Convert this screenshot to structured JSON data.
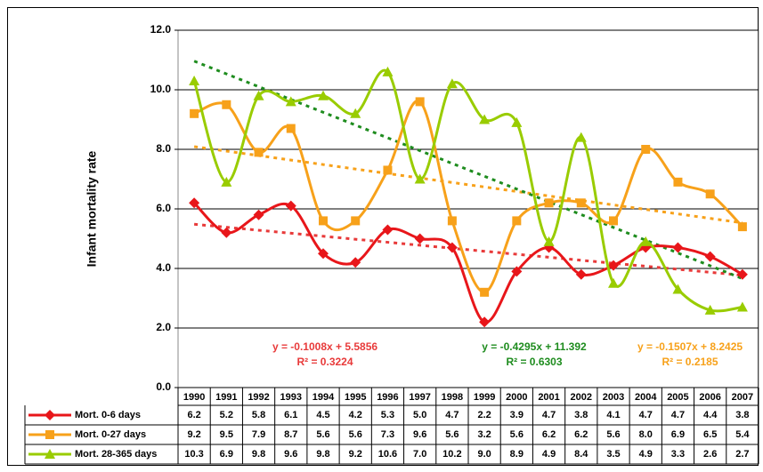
{
  "chart_data": {
    "type": "line",
    "y_label": "Infant mortality rate",
    "categories": [
      "1990",
      "1991",
      "1992",
      "1993",
      "1994",
      "1995",
      "1996",
      "1997",
      "1998",
      "1999",
      "2000",
      "2001",
      "2002",
      "2003",
      "2004",
      "2005",
      "2006",
      "2007"
    ],
    "ylim": [
      0,
      12
    ],
    "yticks": [
      {
        "value": 0,
        "label": "0.0"
      },
      {
        "value": 2,
        "label": "2.0"
      },
      {
        "value": 4,
        "label": "4.0"
      },
      {
        "value": 6,
        "label": "6.0"
      },
      {
        "value": 8,
        "label": "8.0"
      },
      {
        "value": 10,
        "label": "10.0"
      },
      {
        "value": 12,
        "label": "12.0"
      }
    ],
    "grid": true,
    "series": [
      {
        "name": "Mort. 0-6 days",
        "color": "#e8161a",
        "marker": "diamond",
        "trend_color": "#e83a3a",
        "values": [
          6.2,
          5.2,
          5.8,
          6.1,
          4.5,
          4.2,
          5.3,
          5.0,
          4.7,
          2.2,
          3.9,
          4.7,
          3.8,
          4.1,
          4.7,
          4.7,
          4.4,
          3.8
        ],
        "value_labels": [
          "6.2",
          "5.2",
          "5.8",
          "6.1",
          "4.5",
          "4.2",
          "5.3",
          "5.0",
          "4.7",
          "2.2",
          "3.9",
          "4.7",
          "3.8",
          "4.1",
          "4.7",
          "4.7",
          "4.4",
          "3.8"
        ],
        "trend_equation": "y = -0.1008x + 5.5856",
        "trend_r2": "R² = 0.3224"
      },
      {
        "name": "Mort. 0-27 days",
        "color": "#f7a11a",
        "marker": "square",
        "trend_color": "#f7a11a",
        "values": [
          9.2,
          9.5,
          7.9,
          8.7,
          5.6,
          5.6,
          7.3,
          9.6,
          5.6,
          3.2,
          5.6,
          6.2,
          6.2,
          5.6,
          8.0,
          6.9,
          6.5,
          5.4
        ],
        "value_labels": [
          "9.2",
          "9.5",
          "7.9",
          "8.7",
          "5.6",
          "5.6",
          "7.3",
          "9.6",
          "5.6",
          "3.2",
          "5.6",
          "6.2",
          "6.2",
          "5.6",
          "8.0",
          "6.9",
          "6.5",
          "5.4"
        ],
        "trend_equation": "y = -0.1507x + 8.2425",
        "trend_r2": "R² = 0.2185"
      },
      {
        "name": "Mort. 28-365 days",
        "color": "#99cc00",
        "marker": "triangle",
        "trend_color": "#1e8c1e",
        "values": [
          10.3,
          6.9,
          9.8,
          9.6,
          9.8,
          9.2,
          10.6,
          7.0,
          10.2,
          9.0,
          8.9,
          4.9,
          8.4,
          3.5,
          4.9,
          3.3,
          2.6,
          2.7
        ],
        "value_labels": [
          "10.3",
          "6.9",
          "9.8",
          "9.6",
          "9.8",
          "9.2",
          "10.6",
          "7.0",
          "10.2",
          "9.0",
          "8.9",
          "4.9",
          "8.4",
          "3.5",
          "4.9",
          "3.3",
          "2.6",
          "2.7"
        ],
        "trend_equation": "y = -0.4295x + 11.392",
        "trend_r2": "R² = 0.6303"
      }
    ]
  }
}
